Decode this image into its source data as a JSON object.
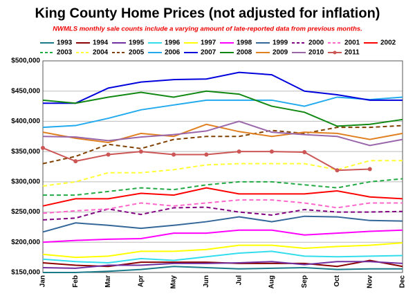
{
  "chart_data": {
    "type": "line",
    "title": "King County Home Prices (not adjusted for inflation)",
    "subtitle": "NWMLS monthly sale counts include a varying amount of late-reported data from previous months.",
    "categories": [
      "Jan",
      "Feb",
      "Mar",
      "Apr",
      "May",
      "Jun",
      "Jul",
      "Aug",
      "Sep",
      "Oct",
      "Nov",
      "Dec"
    ],
    "ylim": [
      150000,
      500000
    ],
    "yticks": [
      {
        "value": 150000,
        "label": "$150,000"
      },
      {
        "value": 200000,
        "label": "$200,000"
      },
      {
        "value": 250000,
        "label": "$250,000"
      },
      {
        "value": 300000,
        "label": "$300,000"
      },
      {
        "value": 350000,
        "label": "$350,000"
      },
      {
        "value": 400000,
        "label": "$400,000"
      },
      {
        "value": 450000,
        "label": "$450,000"
      },
      {
        "value": 500000,
        "label": "$500,000"
      }
    ],
    "grid": true,
    "series": [
      {
        "name": "1993",
        "color": "#1b7a8a",
        "values": [
          150000,
          150000,
          152000,
          155000,
          160000,
          158000,
          156000,
          157000,
          158000,
          155000,
          156000,
          156000
        ]
      },
      {
        "name": "1994",
        "color": "#8b0000",
        "values": [
          166000,
          162000,
          160000,
          167000,
          167000,
          167000,
          165000,
          165000,
          165000,
          160000,
          170000,
          160000
        ]
      },
      {
        "name": "1995",
        "color": "#7030a0",
        "values": [
          158000,
          157000,
          162000,
          162000,
          165000,
          165000,
          166000,
          168000,
          163000,
          168000,
          168000,
          165000
        ]
      },
      {
        "name": "1996",
        "color": "#33ddee",
        "values": [
          172000,
          168000,
          166000,
          173000,
          170000,
          176000,
          182000,
          185000,
          177000,
          176000,
          177000,
          178000
        ]
      },
      {
        "name": "1997",
        "color": "#ffff00",
        "values": [
          180000,
          175000,
          177000,
          185000,
          185000,
          188000,
          195000,
          195000,
          190000,
          193000,
          195000,
          199000
        ]
      },
      {
        "name": "1998",
        "color": "#ff00ff",
        "values": [
          200000,
          203000,
          205000,
          206000,
          215000,
          215000,
          220000,
          220000,
          212000,
          215000,
          218000,
          220000
        ]
      },
      {
        "name": "1999",
        "color": "#336699",
        "values": [
          217000,
          232000,
          228000,
          223000,
          228000,
          234000,
          242000,
          234000,
          243000,
          242000,
          236000,
          235000
        ]
      },
      {
        "name": "2000",
        "color": "#800080",
        "dashed": true,
        "values": [
          237000,
          240000,
          255000,
          246000,
          257000,
          258000,
          250000,
          245000,
          254000,
          250000,
          250000,
          251000
        ]
      },
      {
        "name": "2001",
        "color": "#ff66cc",
        "dashed": true,
        "values": [
          248000,
          252000,
          255000,
          265000,
          260000,
          265000,
          270000,
          270000,
          265000,
          257000,
          265000,
          265000
        ]
      },
      {
        "name": "2002",
        "color": "#ff0000",
        "values": [
          260000,
          272000,
          272000,
          281000,
          278000,
          290000,
          280000,
          280000,
          280000,
          285000,
          275000,
          272000
        ]
      },
      {
        "name": "2003",
        "color": "#22aa44",
        "dashed": true,
        "values": [
          278000,
          278000,
          284000,
          290000,
          287000,
          295000,
          300000,
          300000,
          295000,
          290000,
          300000,
          305000
        ]
      },
      {
        "name": "2004",
        "color": "#ffff33",
        "dashed": true,
        "values": [
          293000,
          300000,
          315000,
          315000,
          320000,
          328000,
          330000,
          330000,
          330000,
          320000,
          335000,
          335000
        ]
      },
      {
        "name": "2005",
        "color": "#804000",
        "dashed": true,
        "values": [
          330000,
          342000,
          362000,
          355000,
          370000,
          375000,
          375000,
          385000,
          380000,
          390000,
          390000,
          393000
        ]
      },
      {
        "name": "2006",
        "color": "#22aaee",
        "values": [
          390000,
          393000,
          405000,
          419000,
          427000,
          435000,
          435000,
          435000,
          425000,
          440000,
          436000,
          440000
        ]
      },
      {
        "name": "2007",
        "color": "#0000dd",
        "values": [
          430000,
          430000,
          455000,
          465000,
          469000,
          470000,
          481000,
          477000,
          450000,
          444000,
          435000,
          435000
        ]
      },
      {
        "name": "2008",
        "color": "#118811",
        "values": [
          435000,
          430000,
          440000,
          448000,
          440000,
          450000,
          445000,
          425000,
          415000,
          392000,
          395000,
          403000
        ]
      },
      {
        "name": "2009",
        "color": "#e08020",
        "values": [
          382000,
          372000,
          365000,
          380000,
          375000,
          395000,
          383000,
          375000,
          382000,
          380000,
          370000,
          380000
        ]
      },
      {
        "name": "2010",
        "color": "#9966aa",
        "values": [
          375000,
          374000,
          368000,
          374000,
          378000,
          384000,
          400000,
          382000,
          378000,
          375000,
          360000,
          370000
        ]
      },
      {
        "name": "2011",
        "color": "#cc5555",
        "marker": "circle",
        "values": [
          356000,
          334000,
          345000,
          350000,
          345000,
          345000,
          350000,
          350000,
          349000,
          319000,
          321000,
          null
        ]
      }
    ]
  }
}
